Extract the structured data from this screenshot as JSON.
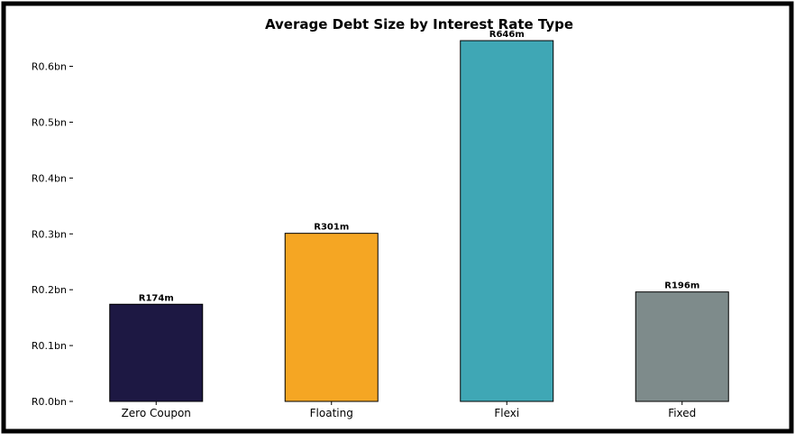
{
  "chart_data": {
    "type": "bar",
    "title": "Average Debt Size by Interest Rate Type",
    "xlabel": "",
    "ylabel": "",
    "categories": [
      "Zero Coupon",
      "Floating",
      "Flexi",
      "Fixed"
    ],
    "values": [
      0.174,
      0.301,
      0.646,
      0.196
    ],
    "value_labels": [
      "R174m",
      "R301m",
      "R646m",
      "R196m"
    ],
    "colors": [
      "#1d1843",
      "#f5a623",
      "#3fa7b5",
      "#7e8b8b"
    ],
    "ylim": [
      0,
      0.68
    ],
    "yticks": [
      0,
      0.1,
      0.2,
      0.3,
      0.4,
      0.5,
      0.6
    ],
    "ytick_labels": [
      "R0.0bn",
      "R0.1bn",
      "R0.2bn",
      "R0.3bn",
      "R0.4bn",
      "R0.5bn",
      "R0.6bn"
    ],
    "grid": false,
    "legend": "none"
  }
}
